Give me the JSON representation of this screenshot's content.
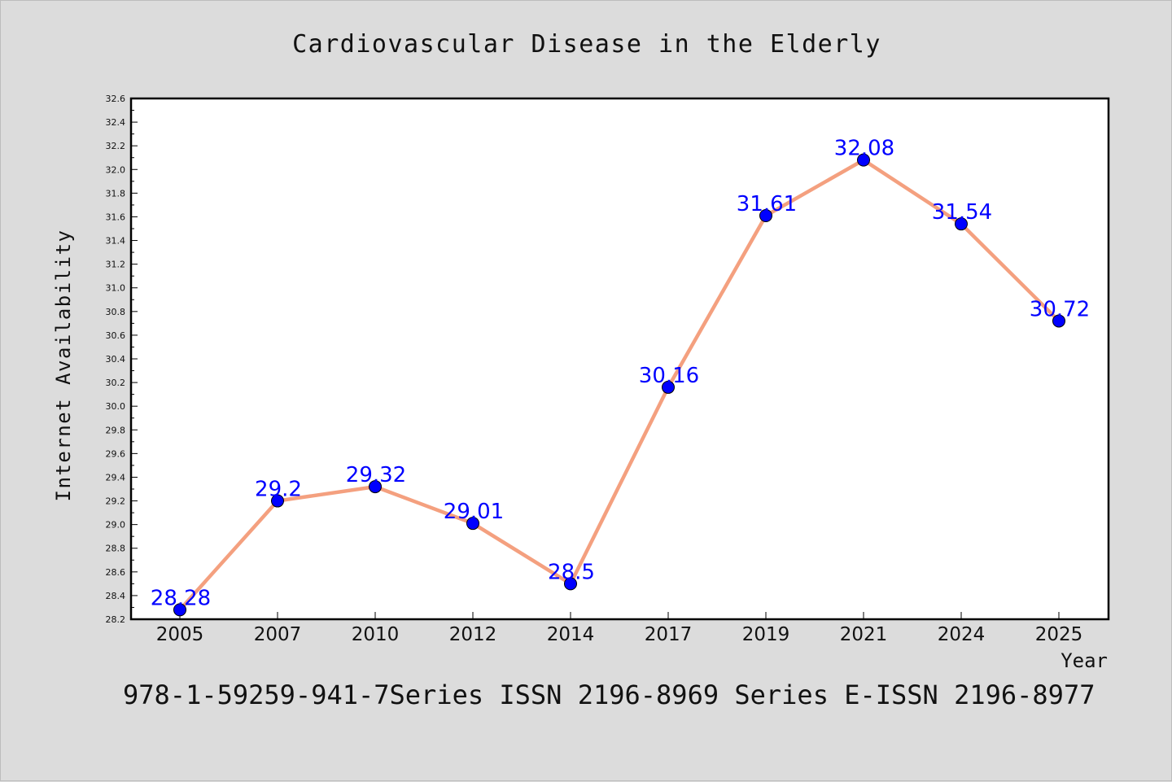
{
  "chart_data": {
    "type": "line",
    "title": "Cardiovascular Disease in the Elderly",
    "xlabel": "Year",
    "ylabel": "Internet Availability",
    "categories": [
      "2005",
      "2007",
      "2010",
      "2012",
      "2014",
      "2017",
      "2019",
      "2021",
      "2024",
      "2025"
    ],
    "series": [
      {
        "values": [
          28.28,
          29.2,
          29.32,
          29.01,
          28.5,
          30.16,
          31.61,
          32.08,
          31.54,
          30.72
        ],
        "labels": [
          "28.28",
          "29.2",
          "29.32",
          "29.01",
          "28.5",
          "30.16",
          "31.61",
          "32.08",
          "31.54",
          "30.72"
        ]
      }
    ],
    "ylim": [
      28.2,
      32.6
    ],
    "yticks": [
      "28.2",
      "28.4",
      "28.6",
      "28.8",
      "29.0",
      "29.2",
      "29.4",
      "29.6",
      "29.8",
      "30.0",
      "30.2",
      "30.4",
      "30.6",
      "30.8",
      "31.0",
      "31.2",
      "31.4",
      "31.6",
      "31.8",
      "32.0",
      "32.2",
      "32.4",
      "32.6"
    ],
    "grid": false,
    "colors": {
      "line": "#f4a07f",
      "marker": "#0000ff",
      "labels": "#0000ff",
      "background": "#dcdcdc",
      "plot_area": "#ffffff"
    }
  },
  "footer": "978-1-59259-941-7Series ISSN 2196-8969 Series E-ISSN 2196-8977"
}
